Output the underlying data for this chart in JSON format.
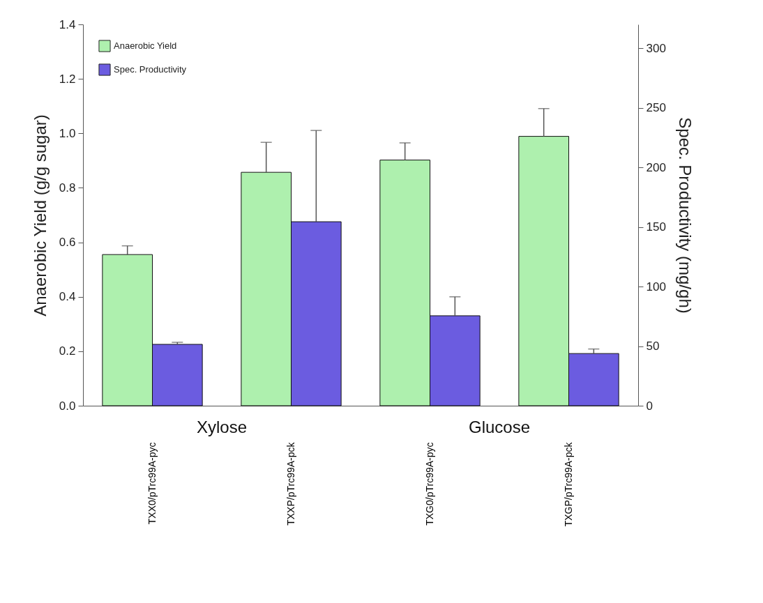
{
  "chart_data": {
    "type": "bar",
    "categories": [
      "TXX0/pTrc99A-pyc",
      "TXXP/pTrc99A-pck",
      "TXG0/pTrc99A-pyc",
      "TXGP/pTrc99A-pck"
    ],
    "ylabel": "Anaerobic Yield (g/g sugar)",
    "y2label": "Spec. Productivity (mg/gh)",
    "series": [
      {
        "name": "Anaerobic Yield",
        "color": "#aef0ae",
        "values": [
          0.555,
          0.857,
          0.902,
          0.989
        ],
        "errors": [
          [
            0.555,
            0.587
          ],
          [
            0.857,
            0.967
          ],
          [
            0.902,
            0.965
          ],
          [
            0.989,
            1.091
          ]
        ]
      },
      {
        "name": "Spec. Productivity",
        "color": "#6b5ce0",
        "axis": "y2",
        "values": [
          51.5,
          154.4,
          75.5,
          43.8
        ],
        "errors": [
          [
            51.5,
            53.2
          ],
          [
            154.4,
            231
          ],
          [
            75.5,
            91.4
          ],
          [
            43.8,
            47.6
          ]
        ]
      }
    ],
    "ylim": [
      0,
      1.4
    ],
    "yticks": [
      {
        "value": 0,
        "label": "0.0"
      },
      0.2,
      0.4,
      0.6,
      0.8,
      {
        "value": 1,
        "label": "1.0"
      },
      1.2,
      1.4
    ],
    "y2lim": [
      0,
      320
    ],
    "y2ticks": [
      0,
      50,
      100,
      150,
      200,
      250,
      300
    ],
    "annotations": [
      "Xylose",
      "Glucose"
    ],
    "legend": "top left",
    "grid": false
  }
}
